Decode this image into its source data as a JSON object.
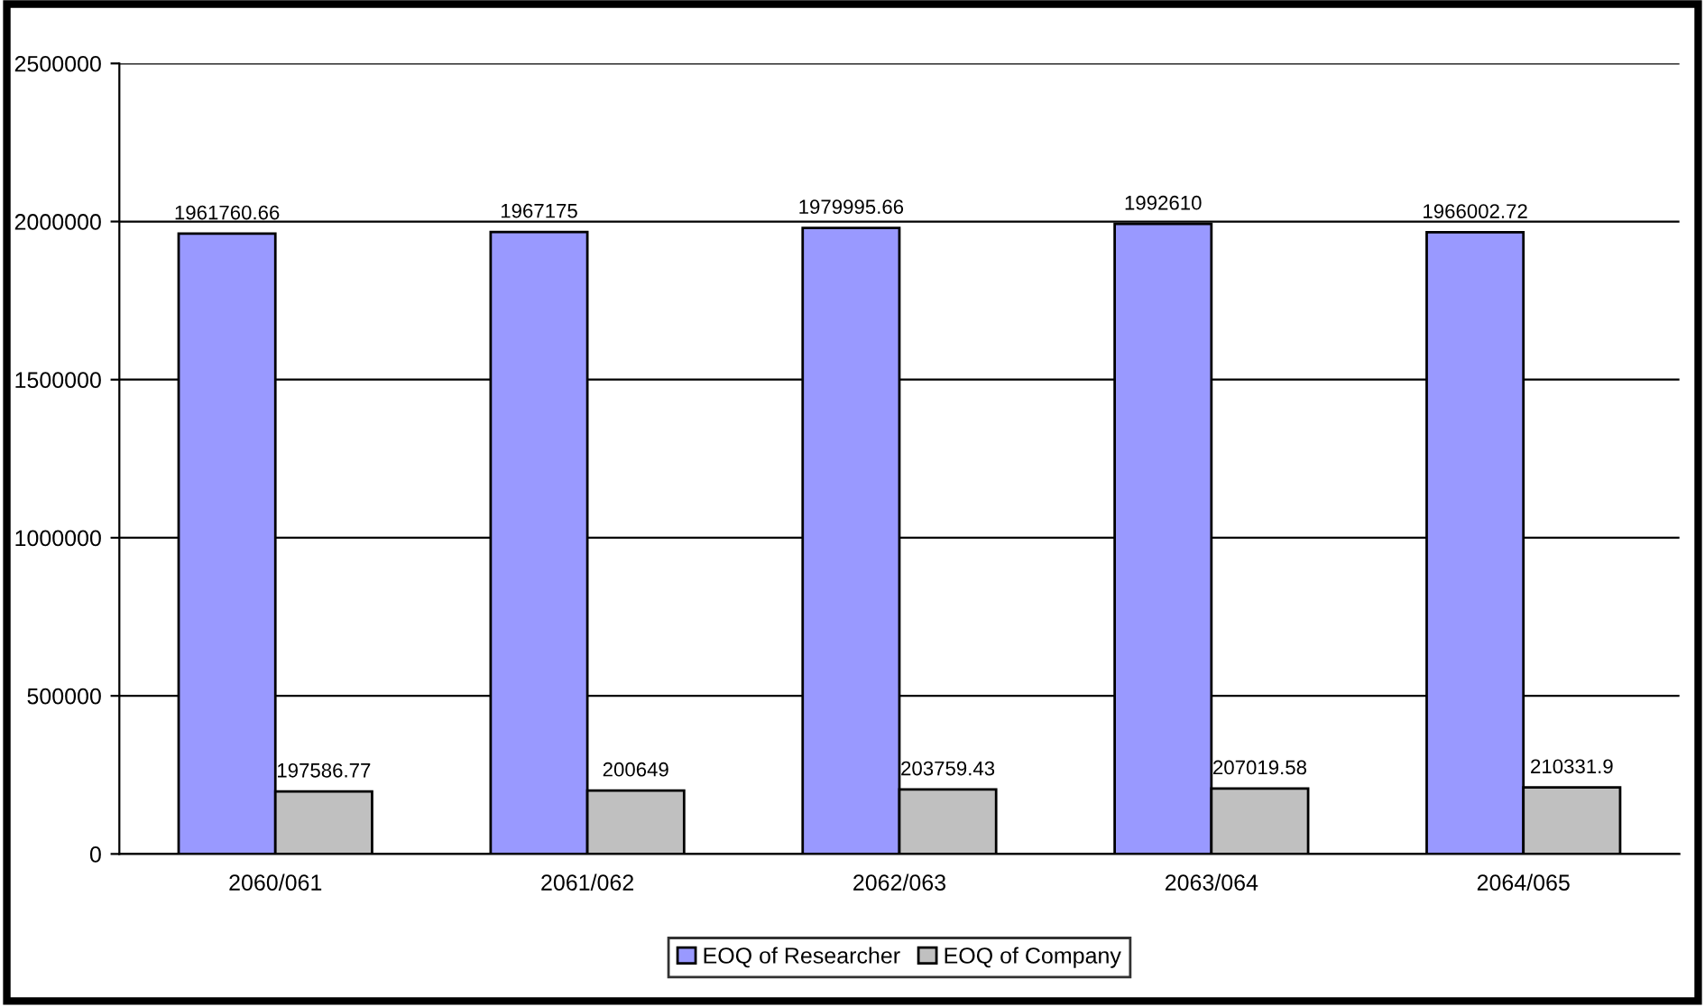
{
  "chart_data": {
    "type": "bar",
    "categories": [
      "2060/061",
      "2061/062",
      "2062/063",
      "2063/064",
      "2064/065"
    ],
    "series": [
      {
        "name": "EOQ of Researcher",
        "color": "#9999ff",
        "values": [
          1961760.66,
          1967175,
          1979995.66,
          1992610,
          1966002.72
        ]
      },
      {
        "name": "EOQ of Company",
        "color": "#c0c0c0",
        "values": [
          197586.77,
          200649,
          203759.43,
          207019.58,
          210331.9
        ]
      }
    ],
    "ylim": [
      0,
      2500000
    ],
    "yticks": [
      0,
      500000,
      1000000,
      1500000,
      2000000,
      2500000
    ],
    "grid": "y",
    "legend": "bottom",
    "data_labels": true
  }
}
